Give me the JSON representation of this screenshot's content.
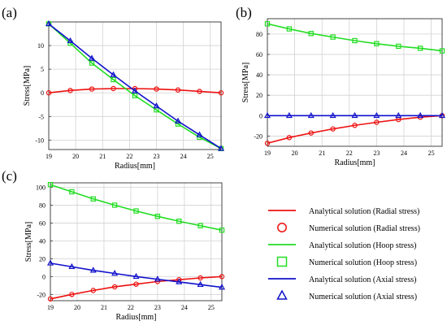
{
  "panel_labels": [
    "(a)",
    "(b)",
    "(c)"
  ],
  "legend": [
    {
      "label": "Analytical solution (Radial stress)",
      "color": "#ee1111",
      "kind": "line"
    },
    {
      "label": "Numerical solution (Radial stress)",
      "color": "#ee1111",
      "kind": "circle"
    },
    {
      "label": "Analytical solution (Hoop stress)",
      "color": "#22dd22",
      "kind": "line"
    },
    {
      "label": "Numerical solution (Hoop stress)",
      "color": "#22dd22",
      "kind": "square"
    },
    {
      "label": "Analytical solution (Axial stress)",
      "color": "#1111cc",
      "kind": "line"
    },
    {
      "label": "Numerical solution (Axial stress)",
      "color": "#1111cc",
      "kind": "triangle"
    }
  ],
  "chart_data": [
    {
      "type": "line",
      "panel": "(a)",
      "xlabel": "Radius[mm]",
      "ylabel": "Stress[MPa]",
      "xlim": [
        19,
        25.4
      ],
      "ylim": [
        -12,
        15
      ],
      "xticks": [
        19,
        20,
        21,
        22,
        23,
        24,
        25
      ],
      "yticks": [
        -10,
        -5,
        0,
        5,
        10
      ],
      "grid": true,
      "series": [
        {
          "color": "#ee1111",
          "marker": "circle",
          "x": [
            19,
            19.8,
            20.6,
            21.4,
            22.2,
            23.0,
            23.8,
            24.6,
            25.4
          ],
          "y": [
            0.0,
            0.5,
            0.8,
            0.9,
            0.9,
            0.8,
            0.6,
            0.3,
            0.0
          ]
        },
        {
          "color": "#22dd22",
          "marker": "square",
          "x": [
            19,
            19.8,
            20.6,
            21.4,
            22.2,
            23.0,
            23.8,
            24.6,
            25.4
          ],
          "y": [
            14.6,
            10.5,
            6.3,
            2.8,
            -0.6,
            -3.6,
            -6.6,
            -9.4,
            -11.8
          ]
        },
        {
          "color": "#1111cc",
          "marker": "triangle",
          "x": [
            19,
            19.8,
            20.6,
            21.4,
            22.2,
            23.0,
            23.8,
            24.6,
            25.4
          ],
          "y": [
            14.6,
            11.0,
            7.3,
            3.8,
            0.4,
            -2.8,
            -6.0,
            -8.9,
            -11.8
          ]
        }
      ]
    },
    {
      "type": "line",
      "panel": "(b)",
      "xlabel": "Radius[mm]",
      "ylabel": "Stress[MPa]",
      "xlim": [
        19,
        25.4
      ],
      "ylim": [
        -30,
        95
      ],
      "xticks": [
        19,
        20,
        21,
        22,
        23,
        24,
        25
      ],
      "yticks": [
        -20,
        0,
        20,
        40,
        60,
        80
      ],
      "grid": true,
      "series": [
        {
          "color": "#ee1111",
          "marker": "circle",
          "x": [
            19,
            19.8,
            20.6,
            21.4,
            22.2,
            23.0,
            23.8,
            24.6,
            25.4
          ],
          "y": [
            -27.0,
            -21.5,
            -17.0,
            -13.0,
            -9.5,
            -6.5,
            -3.8,
            -1.5,
            0.0
          ]
        },
        {
          "color": "#22dd22",
          "marker": "square",
          "x": [
            19,
            19.8,
            20.6,
            21.4,
            22.2,
            23.0,
            23.8,
            24.6,
            25.4
          ],
          "y": [
            90.0,
            85.0,
            80.5,
            77.0,
            73.5,
            70.5,
            68.0,
            66.0,
            63.5
          ]
        },
        {
          "color": "#1111cc",
          "marker": "triangle",
          "x": [
            19,
            19.8,
            20.6,
            21.4,
            22.2,
            23.0,
            23.8,
            24.6,
            25.4
          ],
          "y": [
            0,
            0,
            0,
            0,
            0,
            0,
            0,
            0,
            0
          ]
        }
      ]
    },
    {
      "type": "line",
      "panel": "(c)",
      "xlabel": "Radius[mm]",
      "ylabel": "Stress[MPa]",
      "xlim": [
        19,
        25.4
      ],
      "ylim": [
        -27,
        105
      ],
      "xticks": [
        19,
        20,
        21,
        22,
        23,
        24,
        25
      ],
      "yticks": [
        -20,
        0,
        20,
        40,
        60,
        80,
        100
      ],
      "grid": true,
      "series": [
        {
          "color": "#ee1111",
          "marker": "circle",
          "x": [
            19,
            19.8,
            20.6,
            21.4,
            22.2,
            23.0,
            23.8,
            24.6,
            25.4
          ],
          "y": [
            -25.0,
            -20.0,
            -15.5,
            -11.5,
            -8.5,
            -5.5,
            -3.5,
            -1.5,
            0.0
          ]
        },
        {
          "color": "#22dd22",
          "marker": "square",
          "x": [
            19,
            19.8,
            20.6,
            21.4,
            22.2,
            23.0,
            23.8,
            24.6,
            25.4
          ],
          "y": [
            103.0,
            95.0,
            87.0,
            80.0,
            73.5,
            67.5,
            62.0,
            57.0,
            52.0
          ]
        },
        {
          "color": "#1111cc",
          "marker": "triangle",
          "x": [
            19,
            19.8,
            20.6,
            21.4,
            22.2,
            23.0,
            23.8,
            24.6,
            25.4
          ],
          "y": [
            15.0,
            11.0,
            7.0,
            3.5,
            0.0,
            -3.0,
            -6.0,
            -9.0,
            -12.0
          ]
        }
      ]
    }
  ]
}
